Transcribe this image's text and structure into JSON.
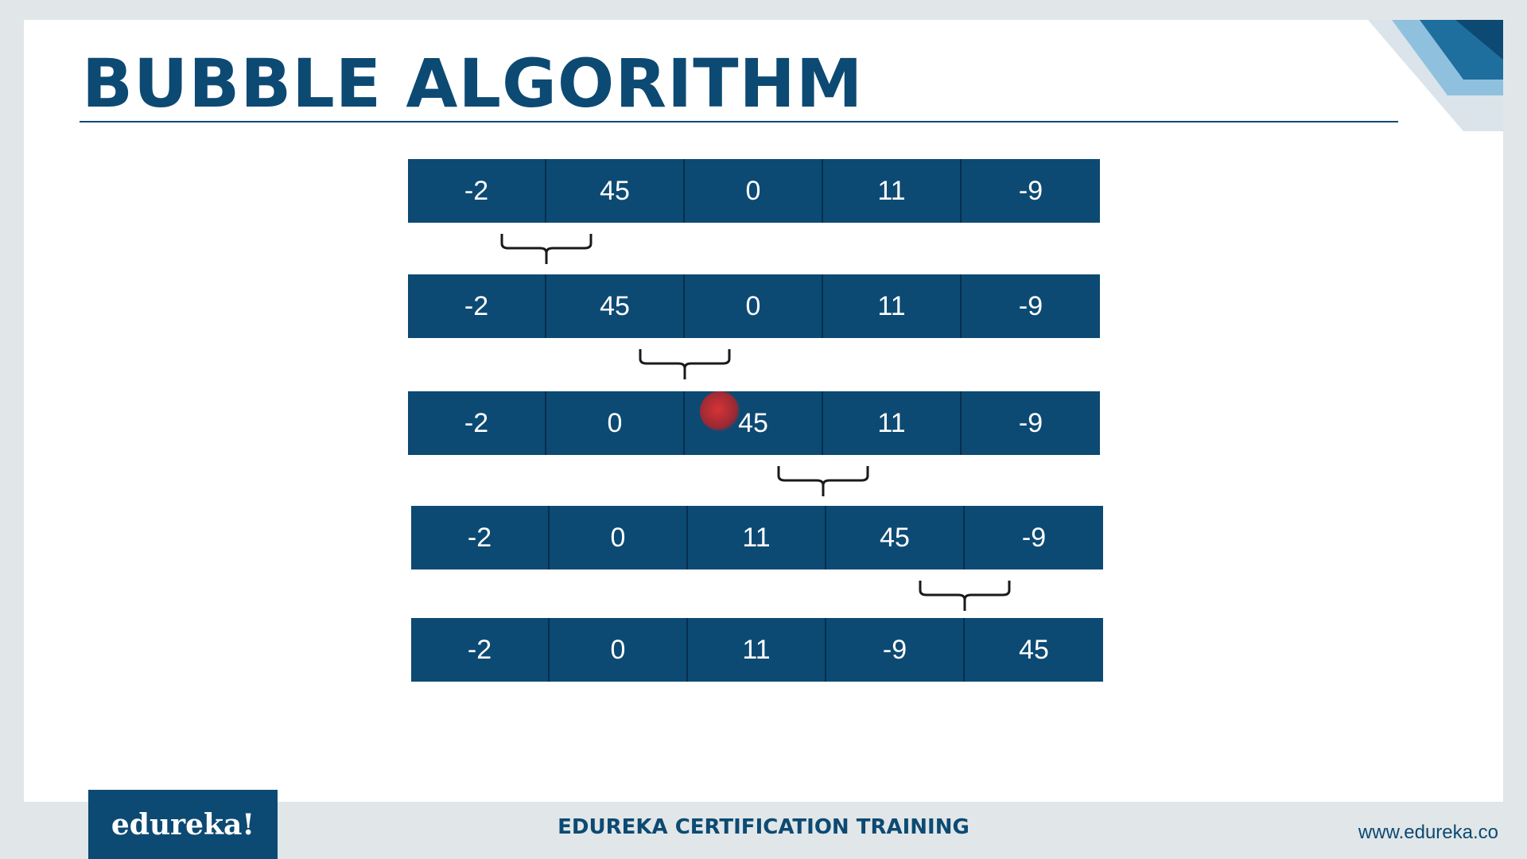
{
  "title": "BUBBLE ALGORITHM",
  "rows": [
    [
      "-2",
      "45",
      "0",
      "11",
      "-9"
    ],
    [
      "-2",
      "45",
      "0",
      "11",
      "-9"
    ],
    [
      "-2",
      "0",
      "45",
      "11",
      "-9"
    ],
    [
      "-2",
      "0",
      "11",
      "45",
      "-9"
    ],
    [
      "-2",
      "0",
      "11",
      "-9",
      "45"
    ]
  ],
  "compared_pairs": [
    [
      0,
      1
    ],
    [
      1,
      2
    ],
    [
      2,
      3
    ],
    [
      3,
      4
    ]
  ],
  "footer": {
    "logo": "edureka!",
    "center": "EDUREKA CERTIFICATION TRAINING",
    "url": "www.edureka.co"
  },
  "colors": {
    "accent": "#0c4a73",
    "background": "#ffffff",
    "pointer": "#e03232"
  }
}
